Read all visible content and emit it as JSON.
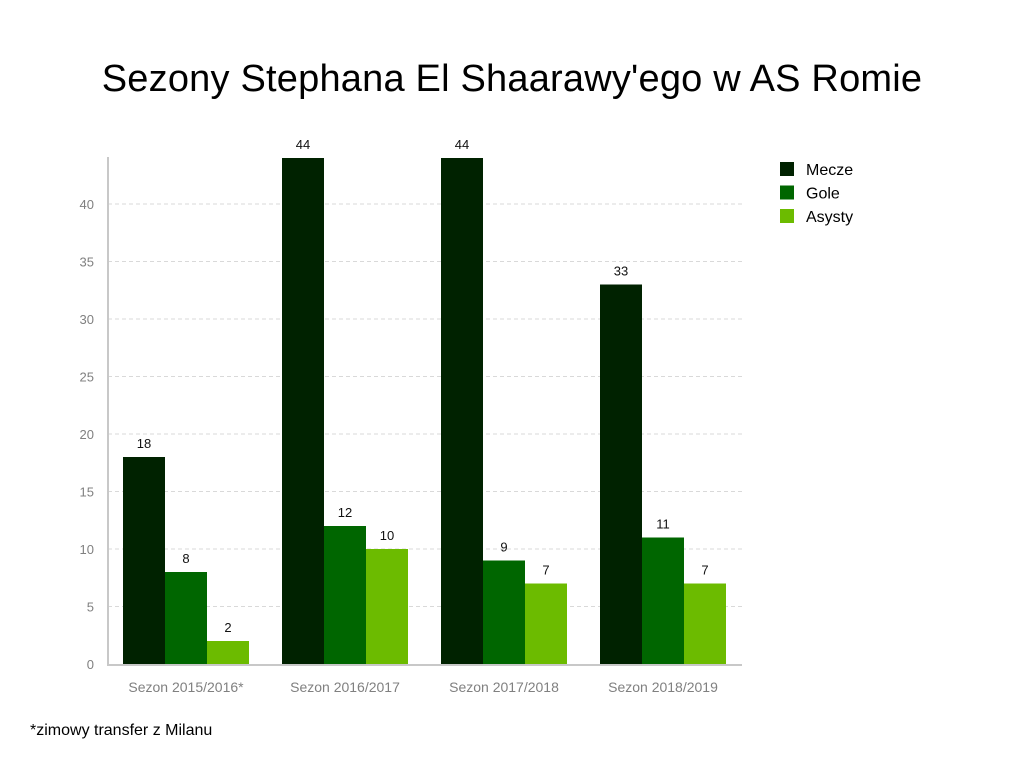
{
  "title": "Sezony Stephana El Shaarawy'ego w AS Romie",
  "footnote": "*zimowy transfer z Milanu",
  "chart_data": {
    "type": "bar",
    "title": "Sezony Stephana El Shaarawy'ego w AS Romie",
    "xlabel": "",
    "ylabel": "",
    "categories": [
      "Sezon 2015/2016*",
      "Sezon 2016/2017",
      "Sezon 2017/2018",
      "Sezon 2018/2019"
    ],
    "series": [
      {
        "name": "Mecze",
        "color": "#002200",
        "values": [
          18,
          44,
          44,
          33
        ]
      },
      {
        "name": "Gole",
        "color": "#006600",
        "values": [
          8,
          12,
          9,
          11
        ]
      },
      {
        "name": "Asysty",
        "color": "#6cbb00",
        "values": [
          2,
          10,
          7,
          7
        ]
      }
    ],
    "yticks": [
      0,
      5,
      10,
      15,
      20,
      25,
      30,
      35,
      40
    ],
    "ylim": [
      0,
      44
    ],
    "grid": true,
    "legend": "top-right",
    "data_labels": true
  }
}
